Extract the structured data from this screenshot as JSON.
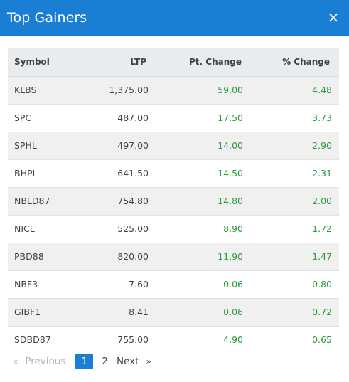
{
  "modal": {
    "title": "Top Gainers"
  },
  "icons": {
    "close": "close-icon"
  },
  "colors": {
    "header": "#1a7fd4",
    "positive": "#2a9d3c",
    "active_page": "#1a7fd4"
  },
  "table": {
    "headers": {
      "symbol": "Symbol",
      "ltp": "LTP",
      "pt_change": "Pt. Change",
      "pct_change": "% Change"
    },
    "rows": [
      {
        "symbol": "KLBS",
        "ltp": "1,375.00",
        "pt_change": "59.00",
        "pct_change": "4.48"
      },
      {
        "symbol": "SPC",
        "ltp": "487.00",
        "pt_change": "17.50",
        "pct_change": "3.73"
      },
      {
        "symbol": "SPHL",
        "ltp": "497.00",
        "pt_change": "14.00",
        "pct_change": "2.90"
      },
      {
        "symbol": "BHPL",
        "ltp": "641.50",
        "pt_change": "14.50",
        "pct_change": "2.31"
      },
      {
        "symbol": "NBLD87",
        "ltp": "754.80",
        "pt_change": "14.80",
        "pct_change": "2.00"
      },
      {
        "symbol": "NICL",
        "ltp": "525.00",
        "pt_change": "8.90",
        "pct_change": "1.72"
      },
      {
        "symbol": "PBD88",
        "ltp": "820.00",
        "pt_change": "11.90",
        "pct_change": "1.47"
      },
      {
        "symbol": "NBF3",
        "ltp": "7.60",
        "pt_change": "0.06",
        "pct_change": "0.80"
      },
      {
        "symbol": "GIBF1",
        "ltp": "8.41",
        "pt_change": "0.06",
        "pct_change": "0.72"
      },
      {
        "symbol": "SDBD87",
        "ltp": "755.00",
        "pt_change": "4.90",
        "pct_change": "0.65"
      }
    ]
  },
  "pagination": {
    "prev_arrow": "«",
    "previous": "Previous",
    "pages": [
      "1",
      "2"
    ],
    "current_page": "1",
    "next": "Next",
    "next_arrow": "»"
  }
}
